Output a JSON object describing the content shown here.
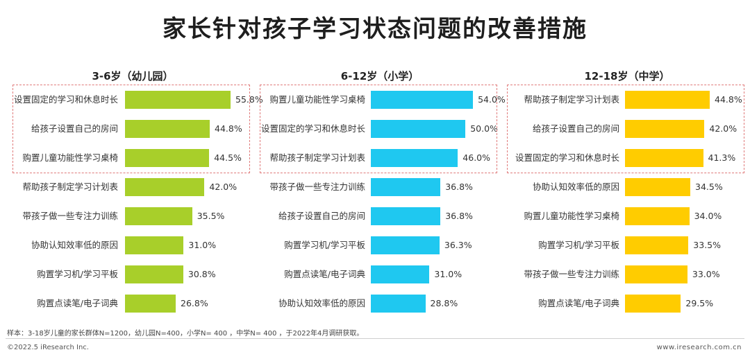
{
  "title": "家长针对孩子学习状态问题的改善措施",
  "chart_data": [
    {
      "type": "bar",
      "orientation": "horizontal",
      "title": "3-6岁（幼儿园）",
      "color": "#a8cf2a",
      "categories": [
        "设置固定的学习和休息时长",
        "给孩子设置自己的房间",
        "购置儿童功能性学习桌椅",
        "帮助孩子制定学习计划表",
        "带孩子做一些专注力训练",
        "协助认知效率低的原因",
        "购置学习机/学习平板",
        "购置点读笔/电子词典"
      ],
      "values": [
        55.8,
        44.8,
        44.5,
        42.0,
        35.5,
        31.0,
        30.8,
        26.8
      ],
      "labels": [
        "55.8%",
        "44.8%",
        "44.5%",
        "42.0%",
        "35.5%",
        "31.0%",
        "30.8%",
        "26.8%"
      ],
      "highlighted_top": 3,
      "xlim": [
        0,
        60
      ]
    },
    {
      "type": "bar",
      "orientation": "horizontal",
      "title": "6-12岁（小学）",
      "color": "#1fc8f0",
      "categories": [
        "购置儿童功能性学习桌椅",
        "设置固定的学习和休息时长",
        "帮助孩子制定学习计划表",
        "带孩子做一些专注力训练",
        "给孩子设置自己的房间",
        "购置学习机/学习平板",
        "购置点读笔/电子词典",
        "协助认知效率低的原因"
      ],
      "values": [
        54.0,
        50.0,
        46.0,
        36.8,
        36.8,
        36.3,
        31.0,
        28.8
      ],
      "labels": [
        "54.0%",
        "50.0%",
        "46.0%",
        "36.8%",
        "36.8%",
        "36.3%",
        "31.0%",
        "28.8%"
      ],
      "highlighted_top": 3,
      "xlim": [
        0,
        60
      ]
    },
    {
      "type": "bar",
      "orientation": "horizontal",
      "title": "12-18岁（中学）",
      "color": "#ffcc00",
      "categories": [
        "帮助孩子制定学习计划表",
        "给孩子设置自己的房间",
        "设置固定的学习和休息时长",
        "协助认知效率低的原因",
        "购置儿童功能性学习桌椅",
        "购置学习机/学习平板",
        "带孩子做一些专注力训练",
        "购置点读笔/电子词典"
      ],
      "values": [
        44.8,
        42.0,
        41.3,
        34.5,
        34.0,
        33.5,
        33.0,
        29.5
      ],
      "labels": [
        "44.8%",
        "42.0%",
        "41.3%",
        "34.5%",
        "34.0%",
        "33.5%",
        "33.0%",
        "29.5%"
      ],
      "highlighted_top": 3,
      "xlim": [
        0,
        60
      ]
    }
  ],
  "footnote": "样本：3-18岁儿童的家长群体N=1200，幼儿园N=400，小学N= 400 ，中学N= 400 ，于2022年4月调研获取。",
  "copyright": "©2022.5 iResearch Inc.",
  "website": "www.iresearch.com.cn"
}
